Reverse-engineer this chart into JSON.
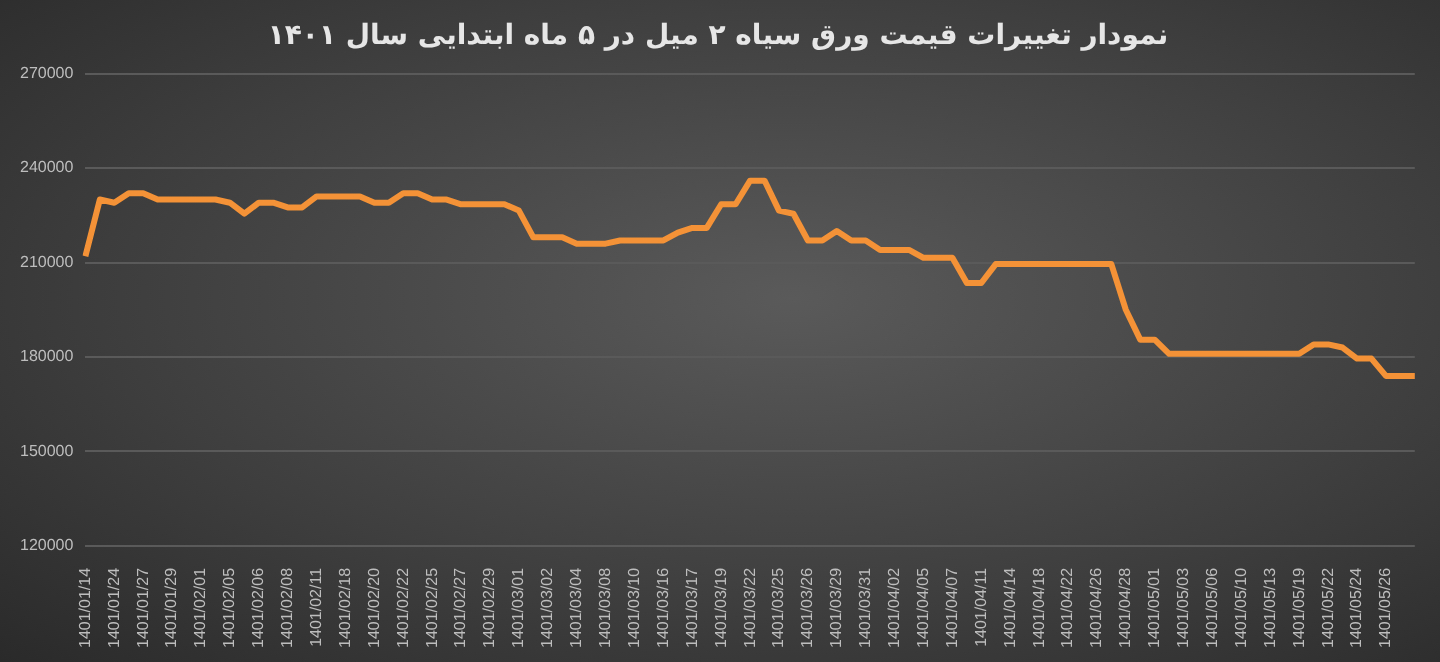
{
  "chart_data": {
    "type": "line",
    "title": "نمودار تغییرات قیمت ورق سیاه ۲ میل در ۵ ماه ابتدایی سال ۱۴۰۱",
    "categories": [
      "1401/01/14",
      null,
      "1401/01/24",
      null,
      "1401/01/27",
      null,
      "1401/01/29",
      null,
      "1401/02/01",
      null,
      "1401/02/05",
      null,
      "1401/02/06",
      null,
      "1401/02/08",
      null,
      "1401/02/11",
      null,
      "1401/02/18",
      null,
      "1401/02/20",
      null,
      "1401/02/22",
      null,
      "1401/02/25",
      null,
      "1401/02/27",
      null,
      "1401/02/29",
      null,
      "1401/03/01",
      null,
      "1401/03/02",
      null,
      "1401/03/04",
      null,
      "1401/03/08",
      null,
      "1401/03/10",
      null,
      "1401/03/16",
      null,
      "1401/03/17",
      null,
      "1401/03/19",
      null,
      "1401/03/22",
      null,
      "1401/03/25",
      null,
      "1401/03/26",
      null,
      "1401/03/29",
      null,
      "1401/03/31",
      null,
      "1401/04/02",
      null,
      "1401/04/05",
      null,
      "1401/04/07",
      null,
      "1401/04/11",
      null,
      "1401/04/14",
      null,
      "1401/04/18",
      null,
      "1401/04/22",
      null,
      "1401/04/26",
      null,
      "1401/04/28",
      null,
      "1401/05/01",
      null,
      "1401/05/03",
      null,
      "1401/05/06",
      null,
      "1401/05/10",
      null,
      "1401/05/13",
      null,
      "1401/05/19",
      null,
      "1401/05/22",
      null,
      "1401/05/24",
      null,
      "1401/05/26",
      null,
      null
    ],
    "series": [
      {
        "color": "#f39237",
        "values": [
          212000,
          230000,
          229000,
          232000,
          232000,
          230000,
          230000,
          230000,
          230000,
          230000,
          229000,
          225500,
          229000,
          229000,
          227500,
          227500,
          231000,
          231000,
          231000,
          231000,
          229000,
          229000,
          232000,
          232000,
          230000,
          230000,
          228500,
          228500,
          228500,
          228500,
          226500,
          218000,
          218000,
          218000,
          216000,
          216000,
          216000,
          217000,
          217000,
          217000,
          217000,
          219500,
          221000,
          221000,
          228500,
          228500,
          236000,
          236000,
          226500,
          225500,
          217000,
          217000,
          220000,
          217000,
          217000,
          214000,
          214000,
          214000,
          211500,
          211500,
          211500,
          203500,
          203500,
          209500,
          209500,
          209500,
          209500,
          209500,
          209500,
          209500,
          209500,
          209500,
          195000,
          185500,
          185500,
          181000,
          181000,
          181000,
          181000,
          181000,
          181000,
          181000,
          181000,
          181000,
          181000,
          184000,
          184000,
          183000,
          179500,
          179500,
          174000,
          174000,
          174000
        ]
      }
    ],
    "ylim": [
      120000,
      270000
    ],
    "yticks": [
      120000,
      150000,
      180000,
      210000,
      240000,
      270000
    ],
    "grid": "y",
    "legend": false,
    "marker": "none",
    "line_style": "solid"
  }
}
